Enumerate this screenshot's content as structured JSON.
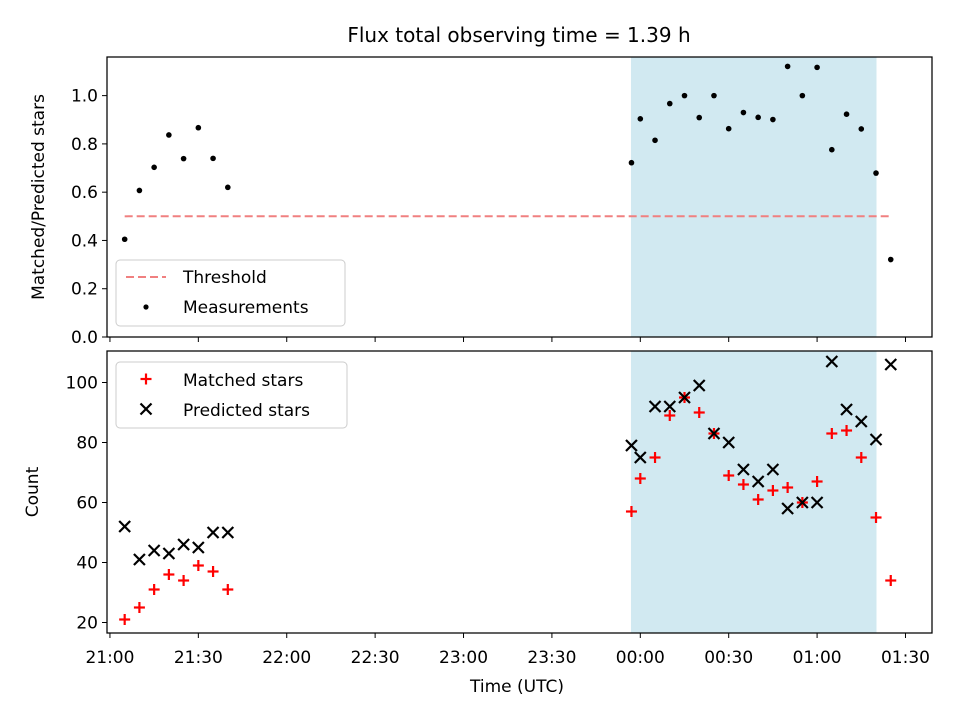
{
  "title": "Flux total observing time = 1.39 h",
  "xlabel": "Time (UTC)",
  "x_ticks": [
    "21:00",
    "21:30",
    "22:00",
    "22:30",
    "23:00",
    "23:30",
    "00:00",
    "00:30",
    "01:00",
    "01:30"
  ],
  "colors": {
    "threshold": "#f08080",
    "measurements": "#000000",
    "matched": "#ff0000",
    "predicted": "#000000",
    "span": "#add8e6"
  },
  "chart_data": [
    {
      "type": "scatter",
      "ylabel": "Matched/Predicted stars",
      "ylim": [
        0,
        1.16
      ],
      "y_ticks": [
        "0.0",
        "0.2",
        "0.4",
        "0.6",
        "0.8",
        "1.0"
      ],
      "xlim": [
        "20:59",
        "01:39"
      ],
      "legend_position": "lower-left",
      "highlight_span": [
        "23:57",
        "01:20"
      ],
      "threshold": {
        "name": "Threshold",
        "y": 0.5,
        "x_range": [
          "21:05",
          "01:25"
        ]
      },
      "series": [
        {
          "name": "Measurements",
          "points": [
            {
              "x": "21:05",
              "y": 0.405
            },
            {
              "x": "21:10",
              "y": 0.607
            },
            {
              "x": "21:15",
              "y": 0.703
            },
            {
              "x": "21:20",
              "y": 0.837
            },
            {
              "x": "21:25",
              "y": 0.739
            },
            {
              "x": "21:30",
              "y": 0.867
            },
            {
              "x": "21:35",
              "y": 0.74
            },
            {
              "x": "21:40",
              "y": 0.62
            },
            {
              "x": "23:57",
              "y": 0.722
            },
            {
              "x": "00:00",
              "y": 0.904
            },
            {
              "x": "00:05",
              "y": 0.815
            },
            {
              "x": "00:10",
              "y": 0.967
            },
            {
              "x": "00:15",
              "y": 1.0
            },
            {
              "x": "00:20",
              "y": 0.909
            },
            {
              "x": "00:25",
              "y": 1.0
            },
            {
              "x": "00:30",
              "y": 0.863
            },
            {
              "x": "00:35",
              "y": 0.93
            },
            {
              "x": "00:40",
              "y": 0.91
            },
            {
              "x": "00:45",
              "y": 0.901
            },
            {
              "x": "00:50",
              "y": 1.121
            },
            {
              "x": "00:55",
              "y": 1.0
            },
            {
              "x": "01:00",
              "y": 1.117
            },
            {
              "x": "01:05",
              "y": 0.776
            },
            {
              "x": "01:10",
              "y": 0.923
            },
            {
              "x": "01:15",
              "y": 0.862
            },
            {
              "x": "01:20",
              "y": 0.679
            },
            {
              "x": "01:25",
              "y": 0.321
            }
          ]
        }
      ]
    },
    {
      "type": "scatter",
      "ylabel": "Count",
      "ylim": [
        16.5,
        110.5
      ],
      "y_ticks": [
        "20",
        "40",
        "60",
        "80",
        "100"
      ],
      "xlim": [
        "20:59",
        "01:39"
      ],
      "legend_position": "upper-left",
      "highlight_span": [
        "23:57",
        "01:20"
      ],
      "x": [
        "21:05",
        "21:10",
        "21:15",
        "21:20",
        "21:25",
        "21:30",
        "21:35",
        "21:40",
        "23:57",
        "00:00",
        "00:05",
        "00:10",
        "00:15",
        "00:20",
        "00:25",
        "00:30",
        "00:35",
        "00:40",
        "00:45",
        "00:50",
        "00:55",
        "01:00",
        "01:05",
        "01:10",
        "01:15",
        "01:20",
        "01:25"
      ],
      "series": [
        {
          "name": "Matched stars",
          "marker": "plus",
          "values": [
            21,
            25,
            31,
            36,
            34,
            39,
            37,
            31,
            57,
            68,
            75,
            89,
            95,
            90,
            83,
            69,
            66,
            61,
            64,
            65,
            60,
            67,
            83,
            84,
            75,
            55,
            34
          ]
        },
        {
          "name": "Predicted stars",
          "marker": "x",
          "values": [
            52,
            41,
            44,
            43,
            46,
            45,
            50,
            50,
            79,
            75,
            92,
            92,
            95,
            99,
            83,
            80,
            71,
            67,
            71,
            58,
            60,
            60,
            107,
            91,
            87,
            81,
            106
          ]
        }
      ]
    }
  ]
}
